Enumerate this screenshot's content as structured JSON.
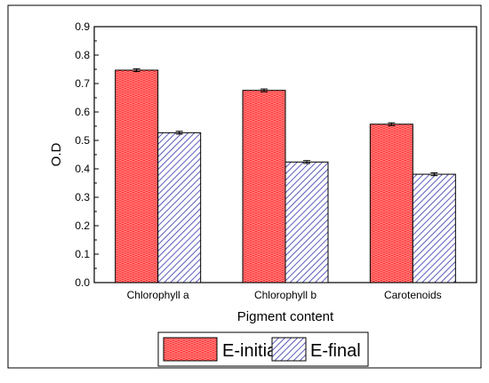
{
  "chart_data": {
    "type": "bar",
    "title": "",
    "xlabel": "Pigment content",
    "ylabel": "O.D",
    "ylim": [
      0,
      0.9
    ],
    "yticks": [
      "0.0",
      "0.1",
      "0.2",
      "0.3",
      "0.4",
      "0.5",
      "0.6",
      "0.7",
      "0.8",
      "0.9"
    ],
    "categories": [
      "Chlorophyll a",
      "Chlorophyll b",
      "Carotenoids"
    ],
    "series": [
      {
        "name": "E-initial",
        "values": [
          0.747,
          0.676,
          0.557
        ],
        "errors": [
          0.005,
          0.005,
          0.005
        ],
        "color": "#ff1a1a"
      },
      {
        "name": "E-final",
        "values": [
          0.527,
          0.424,
          0.381
        ],
        "errors": [
          0.005,
          0.005,
          0.005
        ],
        "color": "#6666cc"
      }
    ],
    "legend_position": "bottom-center",
    "grid": false
  }
}
